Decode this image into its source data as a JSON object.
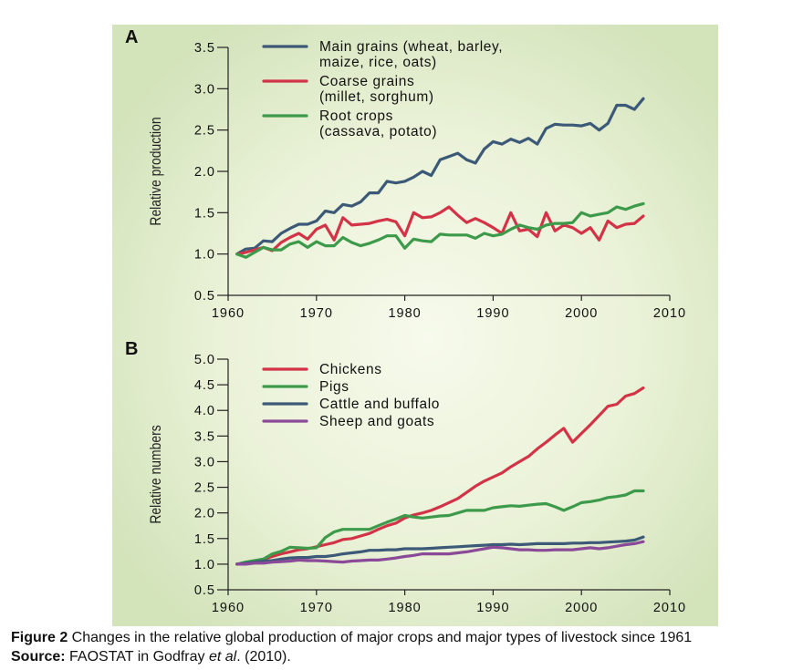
{
  "chart_data": [
    {
      "panel": "A",
      "type": "line",
      "title": "",
      "xlabel": "",
      "ylabel": "Relative production",
      "xlim": [
        1960,
        2010
      ],
      "ylim": [
        0.5,
        3.5
      ],
      "xticks": [
        1960,
        1970,
        1980,
        1990,
        2000,
        2010
      ],
      "yticks": [
        0.5,
        1.0,
        1.5,
        2.0,
        2.5,
        3.0,
        3.5
      ],
      "xtick_labels": [
        "1960",
        "1970",
        "1980",
        "1990",
        "2000",
        "2010"
      ],
      "ytick_labels": [
        "0.5",
        "1.0",
        "1.5",
        "2.0",
        "2.5",
        "3.0",
        "3.5"
      ],
      "legend_position": "top",
      "x": [
        1961,
        1962,
        1963,
        1964,
        1965,
        1966,
        1967,
        1968,
        1969,
        1970,
        1971,
        1972,
        1973,
        1974,
        1975,
        1976,
        1977,
        1978,
        1979,
        1980,
        1981,
        1982,
        1983,
        1984,
        1985,
        1986,
        1987,
        1988,
        1989,
        1990,
        1991,
        1992,
        1993,
        1994,
        1995,
        1996,
        1997,
        1998,
        1999,
        2000,
        2001,
        2002,
        2003,
        2004,
        2005,
        2006,
        2007
      ],
      "series": [
        {
          "name": "Main grains",
          "legend": [
            "Main grains (wheat, barley,",
            "maize, rice, oats)"
          ],
          "color": "#3c5a78",
          "values": [
            1.0,
            1.06,
            1.07,
            1.16,
            1.15,
            1.25,
            1.31,
            1.36,
            1.36,
            1.4,
            1.52,
            1.5,
            1.6,
            1.58,
            1.63,
            1.74,
            1.74,
            1.88,
            1.86,
            1.88,
            1.93,
            2.0,
            1.95,
            2.14,
            2.18,
            2.22,
            2.14,
            2.1,
            2.27,
            2.36,
            2.33,
            2.39,
            2.35,
            2.4,
            2.33,
            2.52,
            2.57,
            2.56,
            2.56,
            2.55,
            2.58,
            2.5,
            2.58,
            2.8,
            2.8,
            2.75,
            2.88
          ]
        },
        {
          "name": "Coarse grains",
          "legend": [
            "Coarse grains",
            "(millet, sorghum)"
          ],
          "color": "#d33347",
          "values": [
            1.0,
            1.02,
            1.05,
            1.08,
            1.04,
            1.14,
            1.2,
            1.25,
            1.18,
            1.3,
            1.35,
            1.17,
            1.44,
            1.35,
            1.36,
            1.37,
            1.4,
            1.42,
            1.39,
            1.22,
            1.5,
            1.44,
            1.45,
            1.5,
            1.57,
            1.47,
            1.38,
            1.43,
            1.38,
            1.32,
            1.25,
            1.5,
            1.28,
            1.3,
            1.21,
            1.5,
            1.28,
            1.35,
            1.32,
            1.25,
            1.32,
            1.17,
            1.4,
            1.32,
            1.36,
            1.37,
            1.46
          ]
        },
        {
          "name": "Root crops",
          "legend": [
            "Root crops",
            "(cassava, potato)"
          ],
          "color": "#3d9a4a",
          "values": [
            1.0,
            0.96,
            1.02,
            1.08,
            1.05,
            1.05,
            1.12,
            1.15,
            1.08,
            1.15,
            1.1,
            1.1,
            1.2,
            1.14,
            1.1,
            1.13,
            1.17,
            1.22,
            1.22,
            1.07,
            1.18,
            1.16,
            1.15,
            1.24,
            1.23,
            1.23,
            1.23,
            1.19,
            1.25,
            1.22,
            1.24,
            1.3,
            1.35,
            1.32,
            1.3,
            1.35,
            1.37,
            1.37,
            1.38,
            1.5,
            1.46,
            1.48,
            1.5,
            1.57,
            1.54,
            1.58,
            1.61
          ]
        }
      ]
    },
    {
      "panel": "B",
      "type": "line",
      "title": "",
      "xlabel": "",
      "ylabel": "Relative numbers",
      "xlim": [
        1960,
        2010
      ],
      "ylim": [
        0.5,
        5.0
      ],
      "xticks": [
        1960,
        1970,
        1980,
        1990,
        2000,
        2010
      ],
      "yticks": [
        0.5,
        1.0,
        1.5,
        2.0,
        2.5,
        3.0,
        3.5,
        4.0,
        4.5,
        5.0
      ],
      "xtick_labels": [
        "1960",
        "1970",
        "1980",
        "1990",
        "2000",
        "2010"
      ],
      "ytick_labels": [
        "0.5",
        "1.0",
        "1.5",
        "2.0",
        "2.5",
        "3.0",
        "3.5",
        "4.0",
        "4.5",
        "5.0"
      ],
      "legend_position": "top-left",
      "x": [
        1961,
        1962,
        1963,
        1964,
        1965,
        1966,
        1967,
        1968,
        1969,
        1970,
        1971,
        1972,
        1973,
        1974,
        1975,
        1976,
        1977,
        1978,
        1979,
        1980,
        1981,
        1982,
        1983,
        1984,
        1985,
        1986,
        1987,
        1988,
        1989,
        1990,
        1991,
        1992,
        1993,
        1994,
        1995,
        1996,
        1997,
        1998,
        1999,
        2000,
        2001,
        2002,
        2003,
        2004,
        2005,
        2006,
        2007
      ],
      "series": [
        {
          "name": "Chickens",
          "legend": [
            "Chickens"
          ],
          "color": "#d33347",
          "values": [
            1.0,
            1.02,
            1.06,
            1.1,
            1.15,
            1.2,
            1.24,
            1.28,
            1.3,
            1.34,
            1.38,
            1.42,
            1.48,
            1.5,
            1.55,
            1.6,
            1.68,
            1.75,
            1.8,
            1.9,
            1.96,
            2.0,
            2.05,
            2.12,
            2.2,
            2.28,
            2.4,
            2.52,
            2.62,
            2.7,
            2.78,
            2.9,
            3.0,
            3.1,
            3.25,
            3.38,
            3.52,
            3.65,
            3.38,
            3.55,
            3.72,
            3.9,
            4.08,
            4.12,
            4.28,
            4.33,
            4.44
          ]
        },
        {
          "name": "Pigs",
          "legend": [
            "Pigs"
          ],
          "color": "#3d9a4a",
          "values": [
            1.0,
            1.04,
            1.07,
            1.1,
            1.2,
            1.25,
            1.33,
            1.32,
            1.31,
            1.32,
            1.52,
            1.63,
            1.68,
            1.68,
            1.68,
            1.68,
            1.75,
            1.82,
            1.88,
            1.95,
            1.92,
            1.9,
            1.92,
            1.94,
            1.95,
            2.0,
            2.05,
            2.05,
            2.05,
            2.1,
            2.12,
            2.14,
            2.13,
            2.15,
            2.17,
            2.18,
            2.12,
            2.05,
            2.12,
            2.2,
            2.22,
            2.25,
            2.3,
            2.32,
            2.35,
            2.43,
            2.43
          ]
        },
        {
          "name": "Cattle and buffalo",
          "legend": [
            "Cattle and buffalo"
          ],
          "color": "#3c5a78",
          "values": [
            1.0,
            1.02,
            1.04,
            1.06,
            1.07,
            1.1,
            1.12,
            1.13,
            1.13,
            1.15,
            1.15,
            1.17,
            1.2,
            1.22,
            1.24,
            1.27,
            1.27,
            1.28,
            1.28,
            1.3,
            1.3,
            1.3,
            1.31,
            1.32,
            1.33,
            1.34,
            1.35,
            1.36,
            1.37,
            1.38,
            1.38,
            1.39,
            1.38,
            1.39,
            1.4,
            1.4,
            1.4,
            1.4,
            1.41,
            1.41,
            1.42,
            1.42,
            1.43,
            1.44,
            1.45,
            1.47,
            1.53
          ]
        },
        {
          "name": "Sheep and goats",
          "legend": [
            "Sheep and goats"
          ],
          "color": "#8a4a98",
          "values": [
            1.0,
            1.0,
            1.02,
            1.02,
            1.04,
            1.05,
            1.06,
            1.08,
            1.07,
            1.07,
            1.06,
            1.05,
            1.04,
            1.06,
            1.07,
            1.08,
            1.08,
            1.1,
            1.12,
            1.15,
            1.17,
            1.2,
            1.2,
            1.2,
            1.2,
            1.22,
            1.24,
            1.27,
            1.3,
            1.33,
            1.32,
            1.3,
            1.28,
            1.28,
            1.27,
            1.27,
            1.28,
            1.28,
            1.28,
            1.3,
            1.32,
            1.3,
            1.32,
            1.35,
            1.38,
            1.4,
            1.44
          ]
        }
      ]
    }
  ],
  "caption": {
    "figure_label": "Figure 2",
    "figure_text": " Changes in the relative global production of major crops and major types of livestock since 1961",
    "source_label": "Source:",
    "source_text_1": " FAOSTAT in Godfray ",
    "source_italic": "et al",
    "source_text_2": ". (2010)."
  },
  "colors": {
    "background_center": "#f7faec",
    "background_edge": "#d7e6c0",
    "axis": "#222222"
  }
}
